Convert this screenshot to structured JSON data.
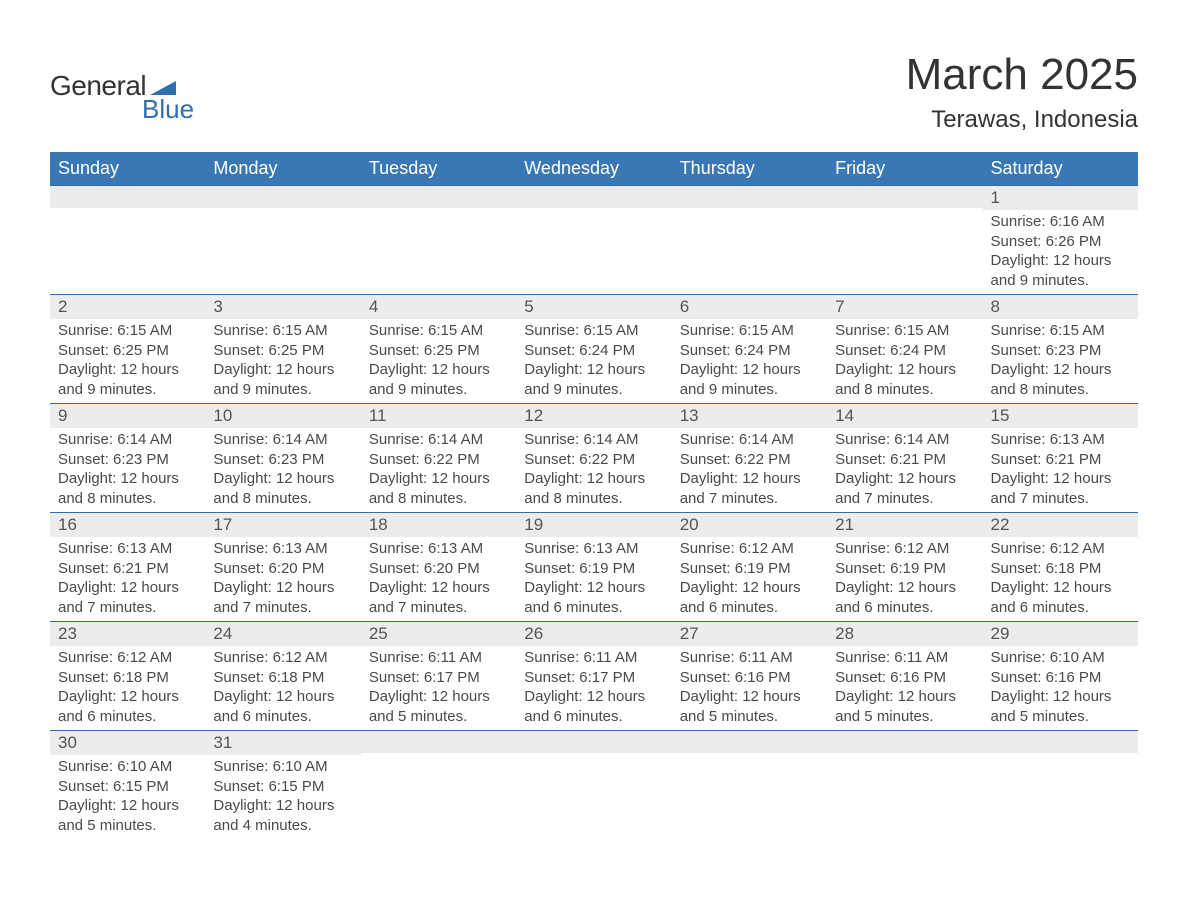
{
  "brand": {
    "line1": "General",
    "line2": "Blue",
    "accent_color": "#2f6fad"
  },
  "title": "March 2025",
  "location": "Terawas, Indonesia",
  "colors": {
    "header_bg": "#3a78b5",
    "header_text": "#ffffff",
    "row_border": "#2f6fad",
    "daynum_bg": "#ececec",
    "daynum_text": "#555555",
    "body_text": "#4a4a4a",
    "page_bg": "#ffffff"
  },
  "typography": {
    "title_fontsize": 44,
    "location_fontsize": 24,
    "weekday_fontsize": 18,
    "daynum_fontsize": 17,
    "cell_fontsize": 15
  },
  "weekdays": [
    "Sunday",
    "Monday",
    "Tuesday",
    "Wednesday",
    "Thursday",
    "Friday",
    "Saturday"
  ],
  "labels": {
    "sunrise": "Sunrise:",
    "sunset": "Sunset:",
    "daylight": "Daylight:"
  },
  "weeks": [
    [
      null,
      null,
      null,
      null,
      null,
      null,
      {
        "n": 1,
        "sr": "6:16 AM",
        "ss": "6:26 PM",
        "dl": "12 hours and 9 minutes."
      }
    ],
    [
      {
        "n": 2,
        "sr": "6:15 AM",
        "ss": "6:25 PM",
        "dl": "12 hours and 9 minutes."
      },
      {
        "n": 3,
        "sr": "6:15 AM",
        "ss": "6:25 PM",
        "dl": "12 hours and 9 minutes."
      },
      {
        "n": 4,
        "sr": "6:15 AM",
        "ss": "6:25 PM",
        "dl": "12 hours and 9 minutes."
      },
      {
        "n": 5,
        "sr": "6:15 AM",
        "ss": "6:24 PM",
        "dl": "12 hours and 9 minutes."
      },
      {
        "n": 6,
        "sr": "6:15 AM",
        "ss": "6:24 PM",
        "dl": "12 hours and 9 minutes."
      },
      {
        "n": 7,
        "sr": "6:15 AM",
        "ss": "6:24 PM",
        "dl": "12 hours and 8 minutes."
      },
      {
        "n": 8,
        "sr": "6:15 AM",
        "ss": "6:23 PM",
        "dl": "12 hours and 8 minutes."
      }
    ],
    [
      {
        "n": 9,
        "sr": "6:14 AM",
        "ss": "6:23 PM",
        "dl": "12 hours and 8 minutes."
      },
      {
        "n": 10,
        "sr": "6:14 AM",
        "ss": "6:23 PM",
        "dl": "12 hours and 8 minutes."
      },
      {
        "n": 11,
        "sr": "6:14 AM",
        "ss": "6:22 PM",
        "dl": "12 hours and 8 minutes."
      },
      {
        "n": 12,
        "sr": "6:14 AM",
        "ss": "6:22 PM",
        "dl": "12 hours and 8 minutes."
      },
      {
        "n": 13,
        "sr": "6:14 AM",
        "ss": "6:22 PM",
        "dl": "12 hours and 7 minutes."
      },
      {
        "n": 14,
        "sr": "6:14 AM",
        "ss": "6:21 PM",
        "dl": "12 hours and 7 minutes."
      },
      {
        "n": 15,
        "sr": "6:13 AM",
        "ss": "6:21 PM",
        "dl": "12 hours and 7 minutes."
      }
    ],
    [
      {
        "n": 16,
        "sr": "6:13 AM",
        "ss": "6:21 PM",
        "dl": "12 hours and 7 minutes."
      },
      {
        "n": 17,
        "sr": "6:13 AM",
        "ss": "6:20 PM",
        "dl": "12 hours and 7 minutes."
      },
      {
        "n": 18,
        "sr": "6:13 AM",
        "ss": "6:20 PM",
        "dl": "12 hours and 7 minutes."
      },
      {
        "n": 19,
        "sr": "6:13 AM",
        "ss": "6:19 PM",
        "dl": "12 hours and 6 minutes."
      },
      {
        "n": 20,
        "sr": "6:12 AM",
        "ss": "6:19 PM",
        "dl": "12 hours and 6 minutes."
      },
      {
        "n": 21,
        "sr": "6:12 AM",
        "ss": "6:19 PM",
        "dl": "12 hours and 6 minutes."
      },
      {
        "n": 22,
        "sr": "6:12 AM",
        "ss": "6:18 PM",
        "dl": "12 hours and 6 minutes."
      }
    ],
    [
      {
        "n": 23,
        "sr": "6:12 AM",
        "ss": "6:18 PM",
        "dl": "12 hours and 6 minutes."
      },
      {
        "n": 24,
        "sr": "6:12 AM",
        "ss": "6:18 PM",
        "dl": "12 hours and 6 minutes."
      },
      {
        "n": 25,
        "sr": "6:11 AM",
        "ss": "6:17 PM",
        "dl": "12 hours and 5 minutes."
      },
      {
        "n": 26,
        "sr": "6:11 AM",
        "ss": "6:17 PM",
        "dl": "12 hours and 6 minutes."
      },
      {
        "n": 27,
        "sr": "6:11 AM",
        "ss": "6:16 PM",
        "dl": "12 hours and 5 minutes."
      },
      {
        "n": 28,
        "sr": "6:11 AM",
        "ss": "6:16 PM",
        "dl": "12 hours and 5 minutes."
      },
      {
        "n": 29,
        "sr": "6:10 AM",
        "ss": "6:16 PM",
        "dl": "12 hours and 5 minutes."
      }
    ],
    [
      {
        "n": 30,
        "sr": "6:10 AM",
        "ss": "6:15 PM",
        "dl": "12 hours and 5 minutes."
      },
      {
        "n": 31,
        "sr": "6:10 AM",
        "ss": "6:15 PM",
        "dl": "12 hours and 4 minutes."
      },
      null,
      null,
      null,
      null,
      null
    ]
  ]
}
